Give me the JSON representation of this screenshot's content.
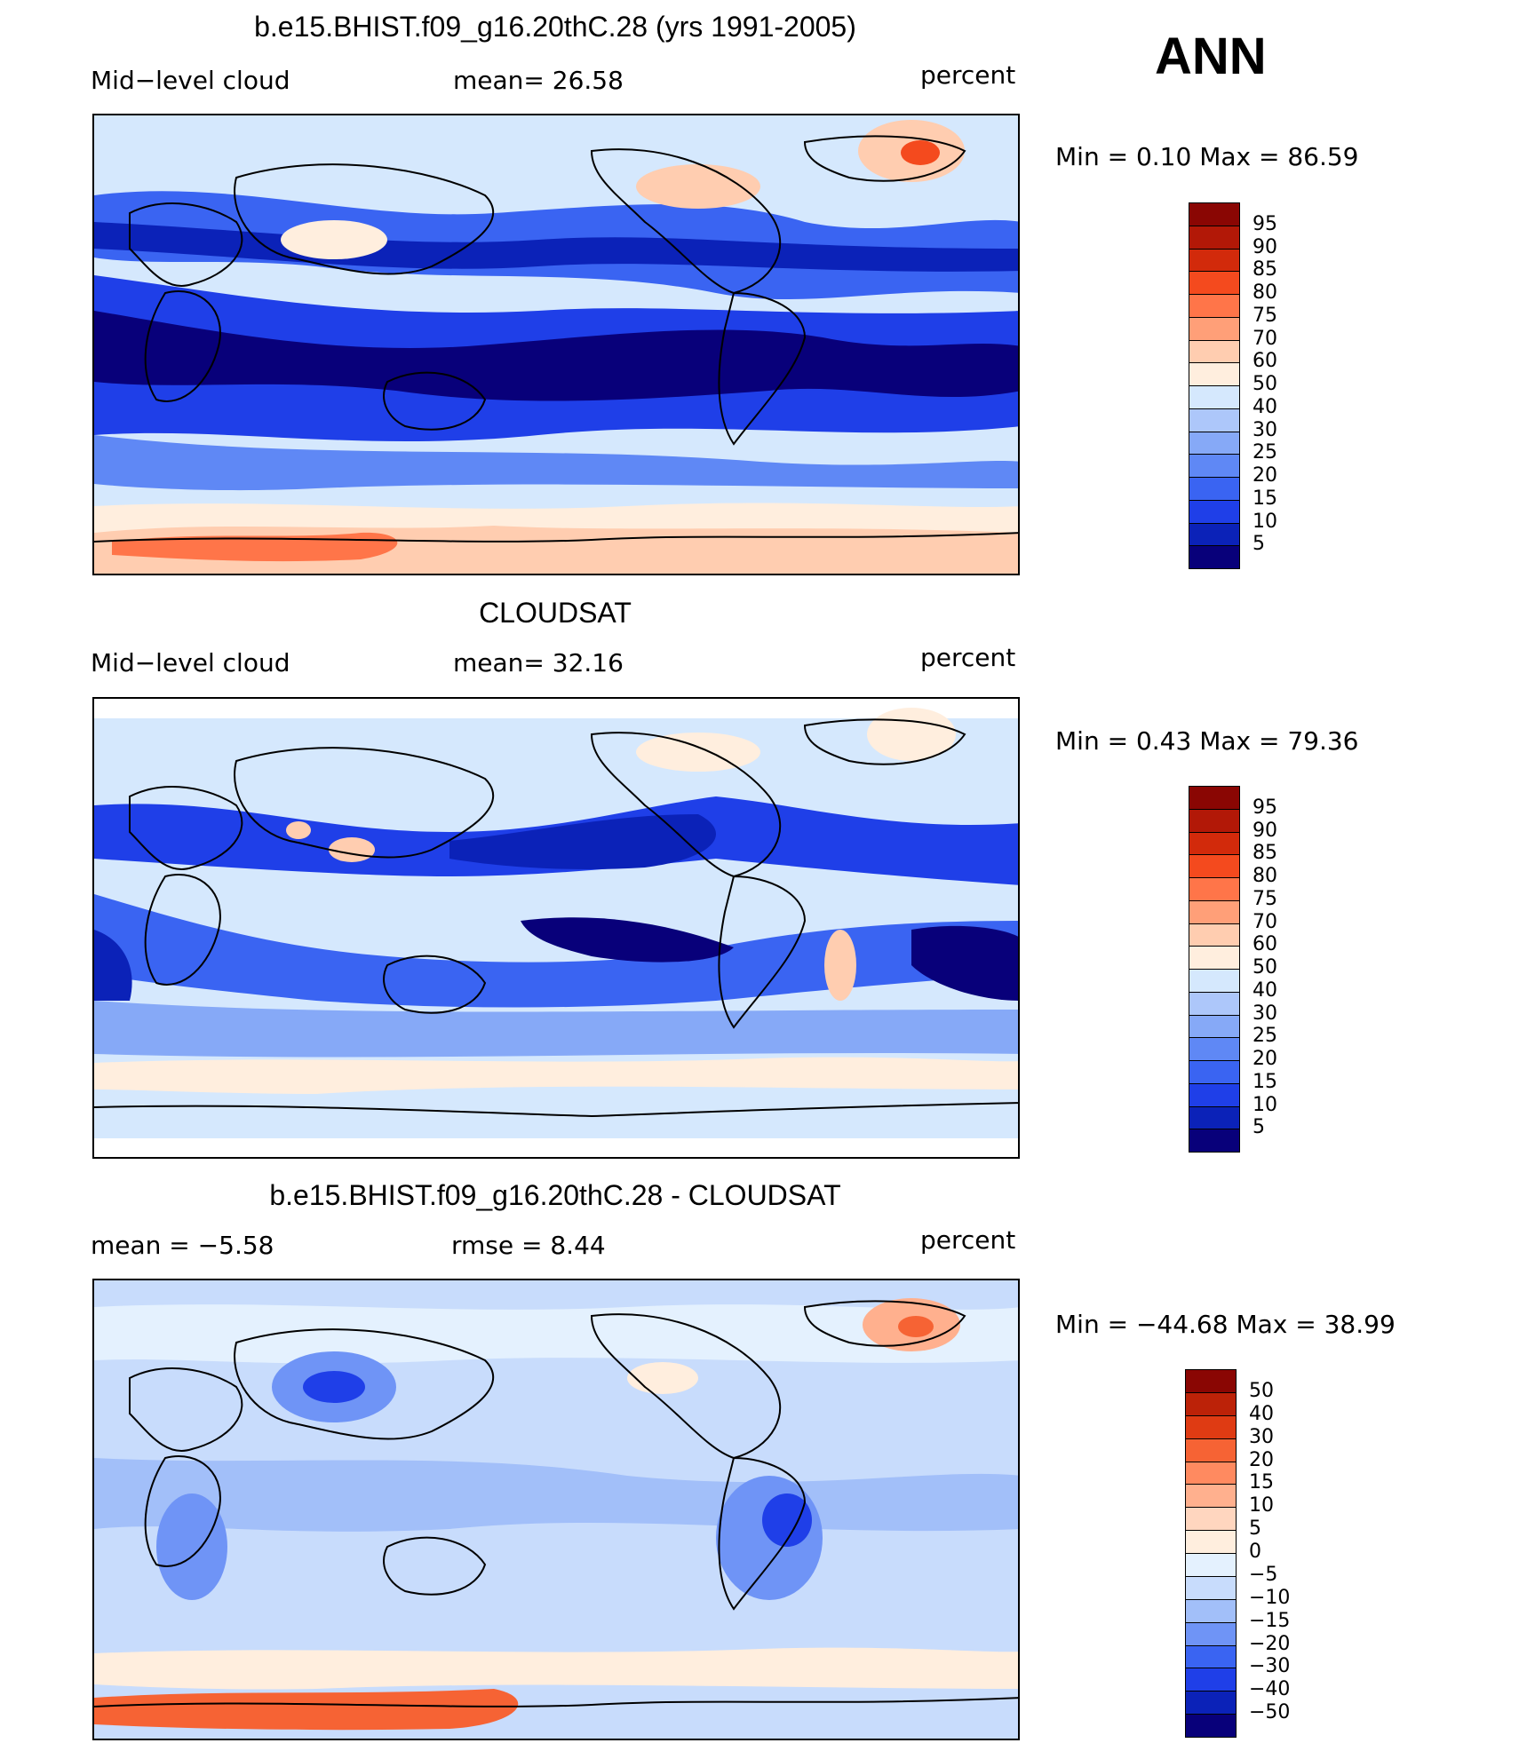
{
  "season": "ANN",
  "colors": {
    "levels_abs": [
      "#08007a",
      "#0b22b8",
      "#1f3fe8",
      "#3a64f2",
      "#5f88f5",
      "#86a9f7",
      "#adc7fa",
      "#d5e8fd",
      "#ffeede",
      "#ffcdb0",
      "#ff9f78",
      "#ff7549",
      "#f44a1e",
      "#d22a0b",
      "#b21807",
      "#8a0603"
    ],
    "levels_diff": [
      "#08007a",
      "#0b22b8",
      "#1f3fe8",
      "#3a64f2",
      "#6f94f6",
      "#a2bff9",
      "#c8dcfc",
      "#e4f1fe",
      "#ffeede",
      "#ffd6bf",
      "#ffb08e",
      "#ff8a60",
      "#f66334",
      "#df3b13",
      "#bc2208",
      "#8a0603"
    ]
  },
  "panels": [
    {
      "title": "b.e15.BHIST.f09_g16.20thC.28 (yrs 1991-2005)",
      "left_label": "Mid−level cloud",
      "center_label": "mean=   26.58",
      "right_label": "percent",
      "minmax": "Min  =     0.10  Max  =     86.59",
      "ticks": [
        "95",
        "90",
        "85",
        "80",
        "75",
        "70",
        "60",
        "50",
        "40",
        "30",
        "25",
        "20",
        "15",
        "10",
        "5"
      ],
      "kind": "model"
    },
    {
      "title": "CLOUDSAT",
      "left_label": "Mid−level cloud",
      "center_label": "mean=   32.16",
      "right_label": "percent",
      "minmax": "Min  =     0.43  Max  =     79.36",
      "ticks": [
        "95",
        "90",
        "85",
        "80",
        "75",
        "70",
        "60",
        "50",
        "40",
        "30",
        "25",
        "20",
        "15",
        "10",
        "5"
      ],
      "kind": "obs"
    },
    {
      "title": "b.e15.BHIST.f09_g16.20thC.28 - CLOUDSAT",
      "left_label": "mean  =    −5.58",
      "center_label": "rmse  =     8.44",
      "right_label": "percent",
      "minmax": "Min  =  −44.68  Max  =     38.99",
      "ticks": [
        "50",
        "40",
        "30",
        "20",
        "15",
        "10",
        "5",
        "0",
        "−5",
        "−10",
        "−15",
        "−20",
        "−30",
        "−40",
        "−50"
      ],
      "kind": "diff"
    }
  ]
}
